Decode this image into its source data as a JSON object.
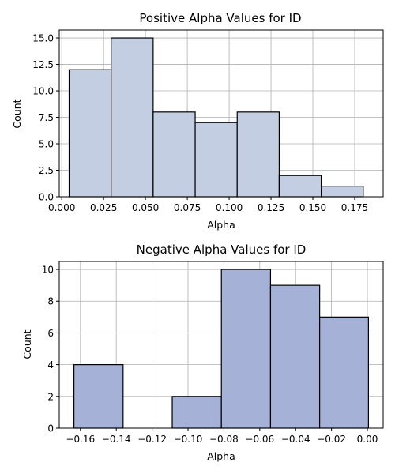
{
  "chart_data": [
    {
      "type": "histogram",
      "title": "Positive Alpha Values for ID",
      "xlabel": "Alpha",
      "ylabel": "Count",
      "bar_color": "#c4cee2",
      "edge_color": "#000000",
      "xlim": [
        -0.0015,
        0.192
      ],
      "ylim": [
        0,
        15.75
      ],
      "xticks": [
        0.0,
        0.025,
        0.05,
        0.075,
        0.1,
        0.125,
        0.15,
        0.175
      ],
      "xtick_labels": [
        "0.000",
        "0.025",
        "0.050",
        "0.075",
        "0.100",
        "0.125",
        "0.150",
        "0.175"
      ],
      "yticks": [
        0,
        2.5,
        5,
        7.5,
        10,
        12.5,
        15
      ],
      "ytick_labels": [
        "0.0",
        "2.5",
        "5.0",
        "7.5",
        "10.0",
        "12.5",
        "15.0"
      ],
      "bins": [
        {
          "x0": 0.0044,
          "x1": 0.0295,
          "count": 12
        },
        {
          "x0": 0.0295,
          "x1": 0.0546,
          "count": 15
        },
        {
          "x0": 0.0546,
          "x1": 0.0797,
          "count": 8
        },
        {
          "x0": 0.0797,
          "x1": 0.1048,
          "count": 7
        },
        {
          "x0": 0.1048,
          "x1": 0.1299,
          "count": 8
        },
        {
          "x0": 0.1299,
          "x1": 0.155,
          "count": 2
        },
        {
          "x0": 0.155,
          "x1": 0.1801,
          "count": 1
        }
      ],
      "grid": true
    },
    {
      "type": "histogram",
      "title": "Negative Alpha Values for ID",
      "xlabel": "Alpha",
      "ylabel": "Count",
      "bar_color": "#a5b1d6",
      "edge_color": "#000000",
      "xlim": [
        -0.1718,
        0.0088
      ],
      "ylim": [
        0,
        10.5
      ],
      "xticks": [
        -0.16,
        -0.14,
        -0.12,
        -0.1,
        -0.08,
        -0.06,
        -0.04,
        -0.02,
        0.0
      ],
      "xtick_labels": [
        "−0.16",
        "−0.14",
        "−0.12",
        "−0.10",
        "−0.08",
        "−0.06",
        "−0.04",
        "−0.02",
        "0.00"
      ],
      "yticks": [
        0,
        2,
        4,
        6,
        8,
        10
      ],
      "ytick_labels": [
        "0",
        "2",
        "4",
        "6",
        "8",
        "10"
      ],
      "bins": [
        {
          "x0": -0.1636,
          "x1": -0.1362,
          "count": 4
        },
        {
          "x0": -0.1362,
          "x1": -0.1088,
          "count": 0
        },
        {
          "x0": -0.1088,
          "x1": -0.0814,
          "count": 2
        },
        {
          "x0": -0.0814,
          "x1": -0.054,
          "count": 10
        },
        {
          "x0": -0.054,
          "x1": -0.0266,
          "count": 9
        },
        {
          "x0": -0.0266,
          "x1": 0.0006,
          "count": 7
        }
      ],
      "grid": true
    }
  ]
}
